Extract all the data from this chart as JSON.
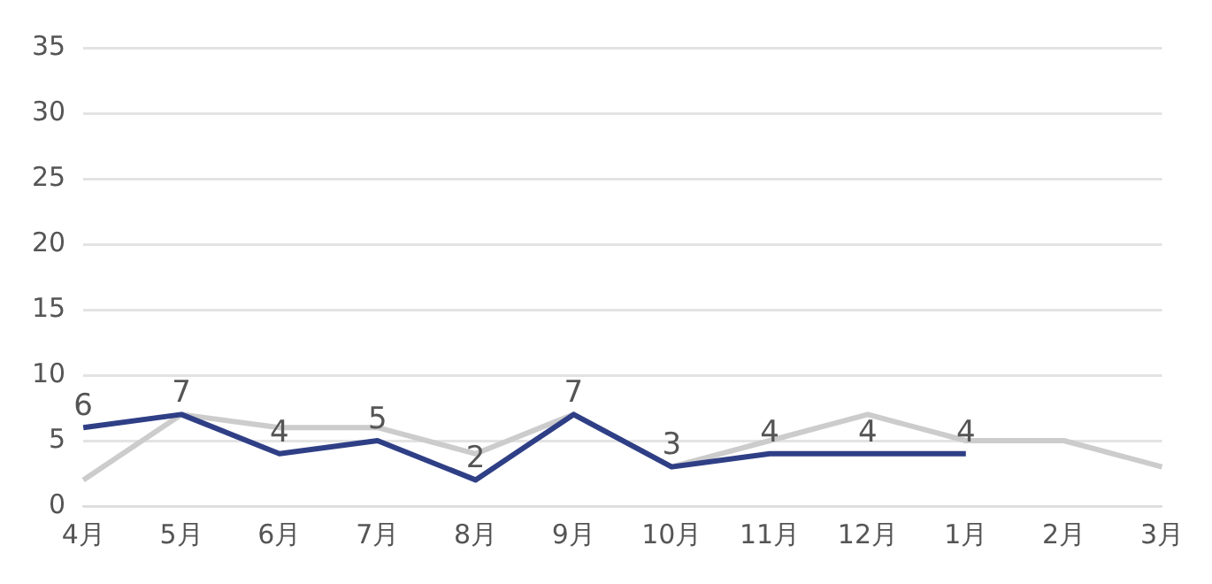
{
  "chart_data": {
    "type": "line",
    "categories": [
      "4月",
      "5月",
      "6月",
      "7月",
      "8月",
      "9月",
      "10月",
      "11月",
      "12月",
      "1月",
      "2月",
      "3月"
    ],
    "series": [
      {
        "color": "#cccccc",
        "values": [
          2,
          7,
          6,
          6,
          4,
          7,
          3,
          5,
          7,
          5,
          5,
          3
        ]
      },
      {
        "color": "#2f3f86",
        "values": [
          6,
          7,
          4,
          5,
          2,
          7,
          3,
          4,
          4,
          4,
          null,
          null
        ],
        "value_labels": [
          "6",
          "7",
          "4",
          "5",
          "2",
          "7",
          "3",
          "4",
          "4",
          "4",
          null,
          null
        ]
      }
    ],
    "ylim": [
      0,
      35
    ],
    "yticks": [
      0,
      5,
      10,
      15,
      20,
      25,
      30,
      35
    ],
    "grid": "y",
    "legend": false,
    "marker": "none",
    "line_style": "solid"
  }
}
